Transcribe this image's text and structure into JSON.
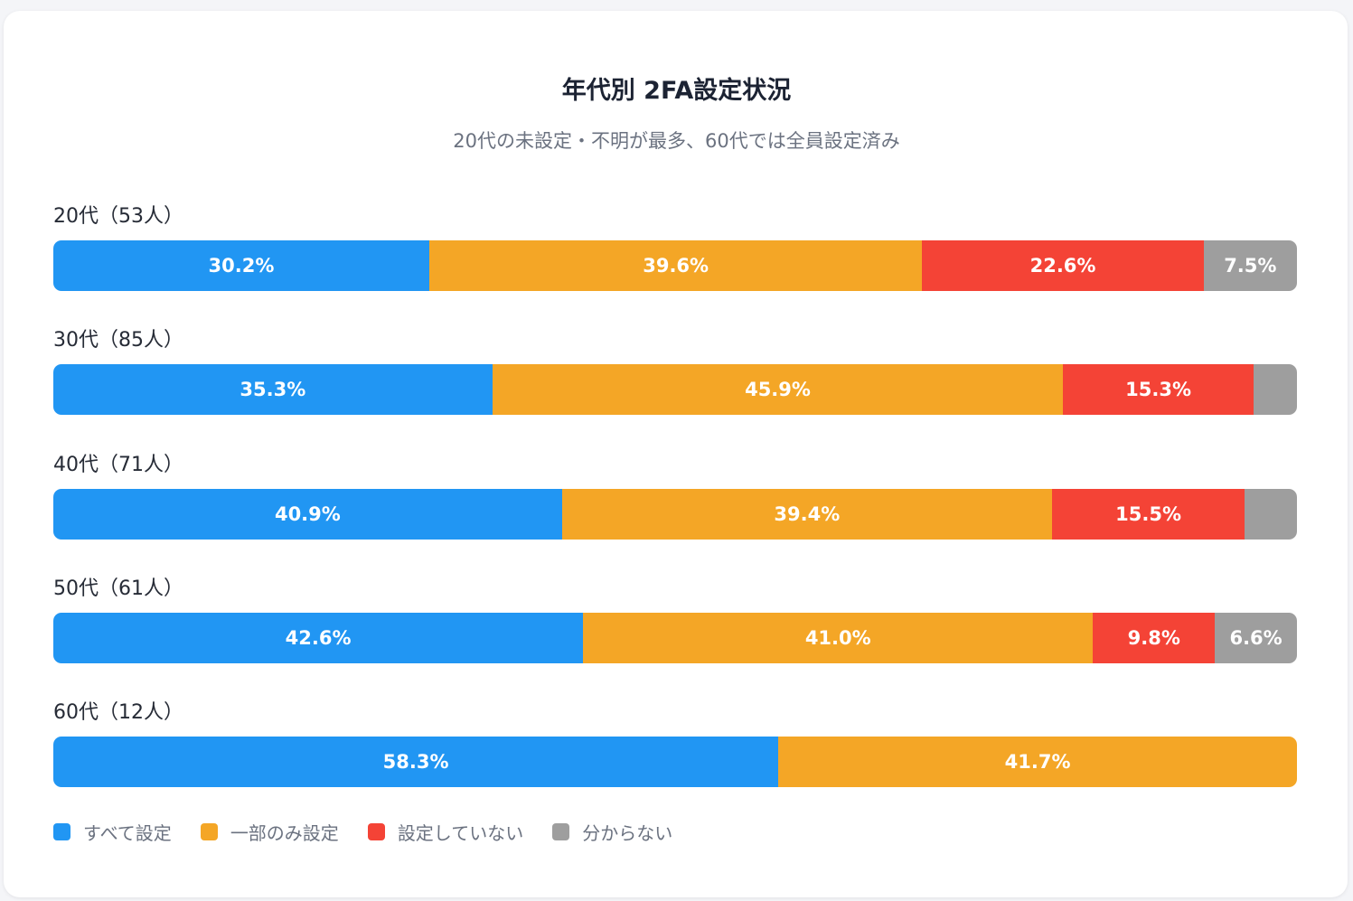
{
  "chart_data": {
    "type": "bar",
    "stacked": true,
    "orientation": "horizontal",
    "normalized": true,
    "title": "年代別 2FA設定状況",
    "subtitle": "20代の未設定・不明が最多、60代では全員設定済み",
    "categories": [
      "20代（53人）",
      "30代（85人）",
      "40代（71人）",
      "50代（61人）",
      "60代（12人）"
    ],
    "series": [
      {
        "name": "すべて設定",
        "color": "#2196f3",
        "values": [
          30.2,
          35.3,
          40.9,
          42.6,
          58.3
        ],
        "labels": [
          "30.2%",
          "35.3%",
          "40.9%",
          "42.6%",
          "58.3%"
        ]
      },
      {
        "name": "一部のみ設定",
        "color": "#f4a626",
        "values": [
          39.6,
          45.9,
          39.4,
          41.0,
          41.7
        ],
        "labels": [
          "39.6%",
          "45.9%",
          "39.4%",
          "41.0%",
          "41.7%"
        ]
      },
      {
        "name": "設定していない",
        "color": "#f44336",
        "values": [
          22.6,
          15.3,
          15.5,
          9.8,
          0
        ],
        "labels": [
          "22.6%",
          "15.3%",
          "15.5%",
          "9.8%",
          ""
        ]
      },
      {
        "name": "分からない",
        "color": "#9e9e9e",
        "values": [
          7.5,
          3.5,
          4.2,
          6.6,
          0
        ],
        "labels": [
          "7.5%",
          "",
          "",
          "6.6%",
          ""
        ]
      }
    ],
    "legend_position": "bottom-left",
    "grid": false
  }
}
